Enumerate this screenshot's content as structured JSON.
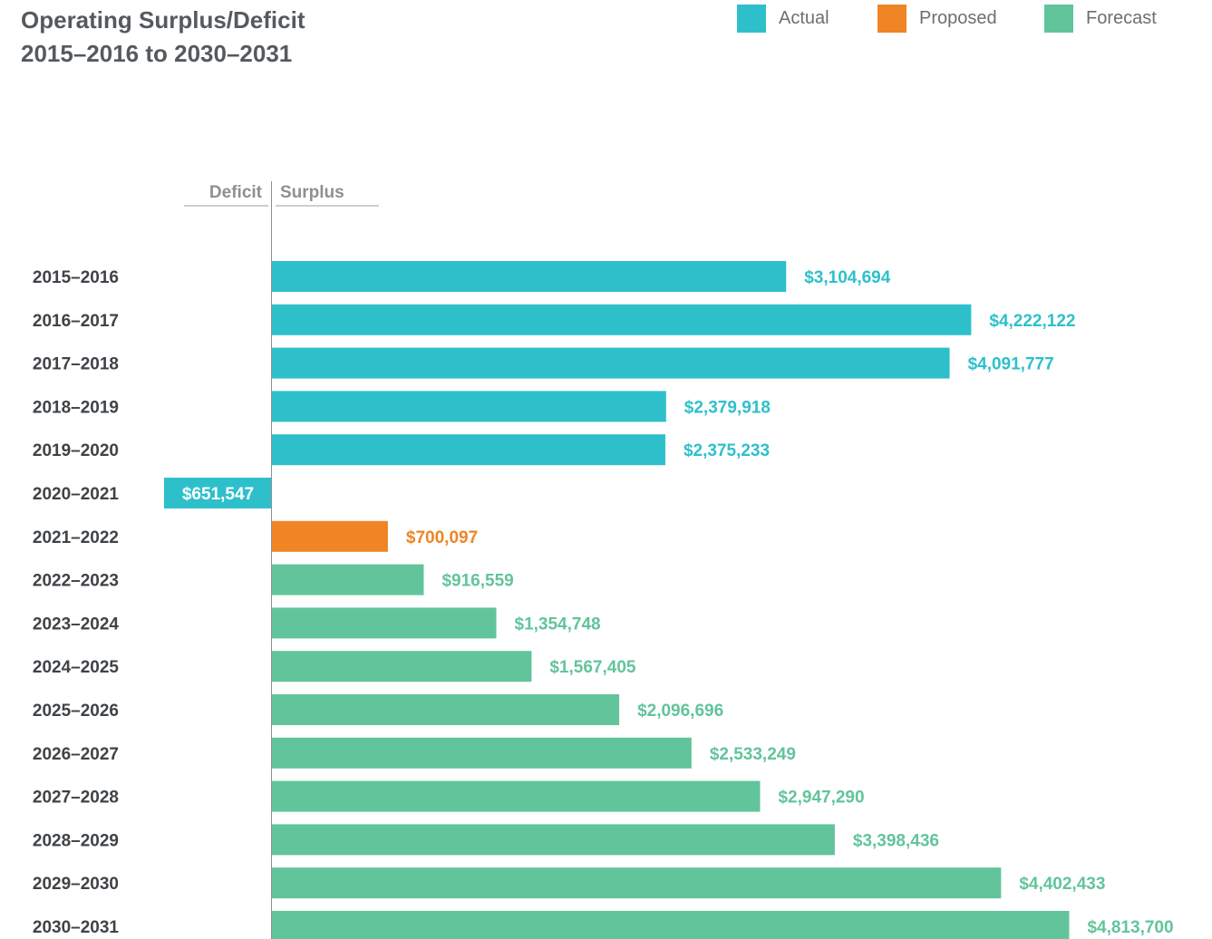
{
  "title": {
    "line1": "Operating Surplus/Deficit",
    "line2": "2015–2016 to 2030–2031"
  },
  "legend": [
    {
      "label": "Actual",
      "color": "#2ec0ca"
    },
    {
      "label": "Proposed",
      "color": "#ef8524"
    },
    {
      "label": "Forecast",
      "color": "#62c49b"
    }
  ],
  "chart_data": {
    "type": "bar",
    "orientation": "horizontal",
    "title": "Operating Surplus/Deficit 2015–2016 to 2030–2031",
    "axis_headers": {
      "negative": "Deficit",
      "positive": "Surplus"
    },
    "categories": [
      "2015–2016",
      "2016–2017",
      "2017–2018",
      "2018–2019",
      "2019–2020",
      "2020–2021",
      "2021–2022",
      "2022–2023",
      "2023–2024",
      "2024–2025",
      "2025–2026",
      "2026–2027",
      "2027–2028",
      "2028–2029",
      "2029–2030",
      "2030–2031"
    ],
    "values": [
      3104694,
      4222122,
      4091777,
      2379918,
      2375233,
      -651547,
      700097,
      916559,
      1354748,
      1567405,
      2096696,
      2533249,
      2947290,
      3398436,
      4402433,
      4813700
    ],
    "value_labels": [
      "$3,104,694",
      "$4,222,122",
      "$4,091,777",
      "$2,379,918",
      "$2,375,233",
      "$651,547",
      "$700,097",
      "$916,559",
      "$1,354,748",
      "$1,567,405",
      "$2,096,696",
      "$2,533,249",
      "$2,947,290",
      "$3,398,436",
      "$4,402,433",
      "$4,813,700"
    ],
    "status": [
      "Actual",
      "Actual",
      "Actual",
      "Actual",
      "Actual",
      "Actual",
      "Proposed",
      "Forecast",
      "Forecast",
      "Forecast",
      "Forecast",
      "Forecast",
      "Forecast",
      "Forecast",
      "Forecast",
      "Forecast"
    ],
    "grid": false,
    "legend_position": "top-right"
  }
}
